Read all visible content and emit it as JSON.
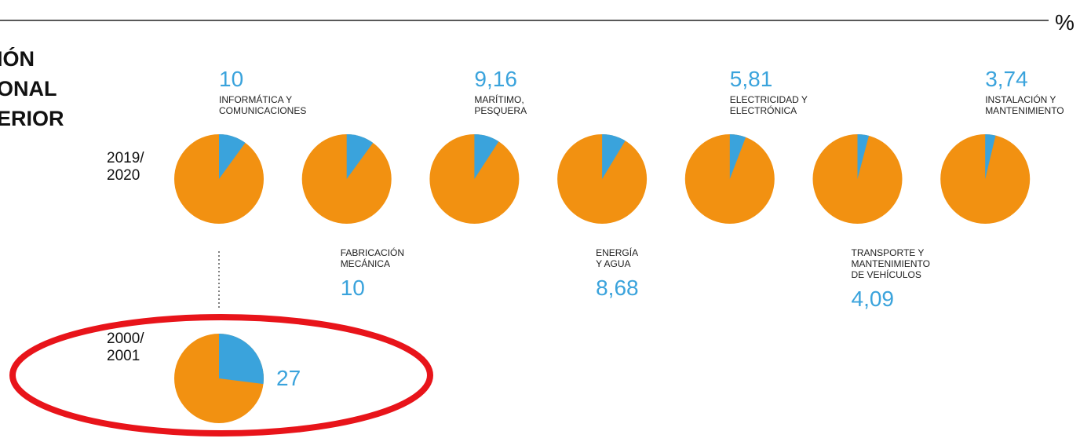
{
  "chart_data": {
    "type": "pie",
    "unit": "%",
    "title": [
      "IÓN",
      "ONAL",
      "ERIOR"
    ],
    "row_label": [
      "2019/",
      "2020"
    ],
    "categories": [
      [
        "INFORMÁTICA Y",
        "COMUNICACIONES"
      ],
      [
        "FABRICACIÓN",
        "MECÁNICA"
      ],
      [
        "MARÍTIMO,",
        "PESQUERA"
      ],
      [
        "ENERGÍA",
        "Y AGUA"
      ],
      [
        "ELECTRICIDAD Y",
        "ELECTRÓNICA"
      ],
      [
        "TRANSPORTE Y",
        "MANTENIMIENTO",
        "DE VEHÍCULOS"
      ],
      [
        "INSTALACIÓN Y",
        "MANTENIMIENTO"
      ]
    ],
    "values": [
      10,
      10,
      9.16,
      8.68,
      5.81,
      4.09,
      3.74
    ],
    "value_labels": [
      "10",
      "10",
      "9,16",
      "8,68",
      "5,81",
      "4,09",
      "3,74"
    ],
    "past": {
      "row_label": [
        "2000/",
        "2001"
      ],
      "value": 27,
      "value_label": "27"
    },
    "colors": {
      "share": "#3aa3dc",
      "rest": "#f29111"
    }
  }
}
